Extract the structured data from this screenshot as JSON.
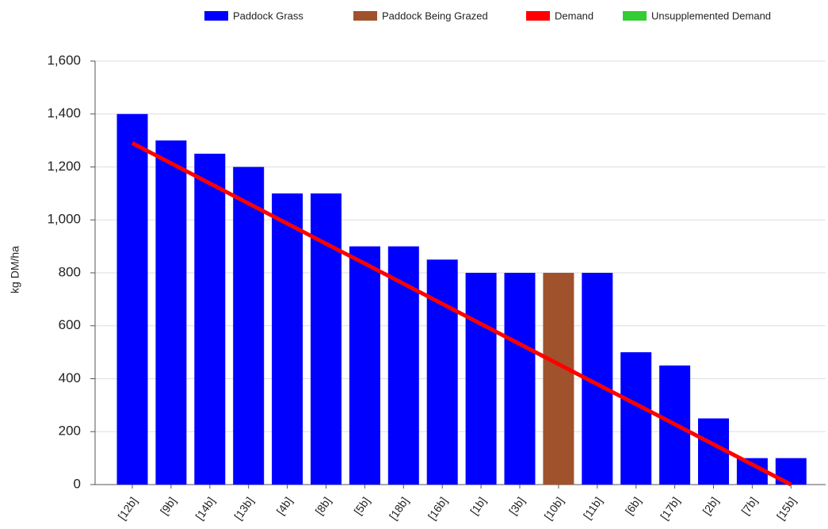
{
  "chart_data": {
    "type": "bar",
    "y_label": "kg DM/ha",
    "categories": [
      "[12b]",
      "[9b]",
      "[14b]",
      "[13b]",
      "[4b]",
      "[8b]",
      "[5b]",
      "[18b]",
      "[16b]",
      "[1b]",
      "[3b]",
      "[10b]",
      "[11b]",
      "[6b]",
      "[17b]",
      "[2b]",
      "[7b]",
      "[15b]"
    ],
    "series": [
      {
        "name": "Paddock Grass",
        "type": "bar",
        "color": "#0000ff",
        "values": [
          1400,
          1300,
          1250,
          1200,
          1100,
          1100,
          900,
          900,
          850,
          800,
          800,
          null,
          800,
          500,
          450,
          250,
          100,
          100
        ]
      },
      {
        "name": "Paddock Being Grazed",
        "type": "bar",
        "color": "#a0522d",
        "values": [
          null,
          null,
          null,
          null,
          null,
          null,
          null,
          null,
          null,
          null,
          null,
          800,
          null,
          null,
          null,
          null,
          null,
          null
        ]
      },
      {
        "name": "Demand",
        "type": "line",
        "color": "#ff0000",
        "values": [
          1290,
          1214,
          1138,
          1062,
          986,
          910,
          835,
          759,
          683,
          607,
          531,
          455,
          379,
          304,
          228,
          152,
          76,
          0
        ]
      },
      {
        "name": "Unsupplemented Demand",
        "type": "line",
        "color": "#33cc33",
        "values": [
          null,
          null,
          null,
          null,
          null,
          null,
          null,
          null,
          null,
          null,
          null,
          null,
          null,
          null,
          null,
          null,
          null,
          null
        ]
      }
    ],
    "ylim": [
      0,
      1600
    ],
    "yticks": [
      0,
      200,
      400,
      600,
      800,
      {
        "value": 1000,
        "label": "1,000"
      },
      {
        "value": 1200,
        "label": "1,200"
      },
      {
        "value": 1400,
        "label": "1,400"
      },
      {
        "value": 1600,
        "label": "1,600"
      }
    ],
    "grid": true,
    "legend": "top"
  }
}
